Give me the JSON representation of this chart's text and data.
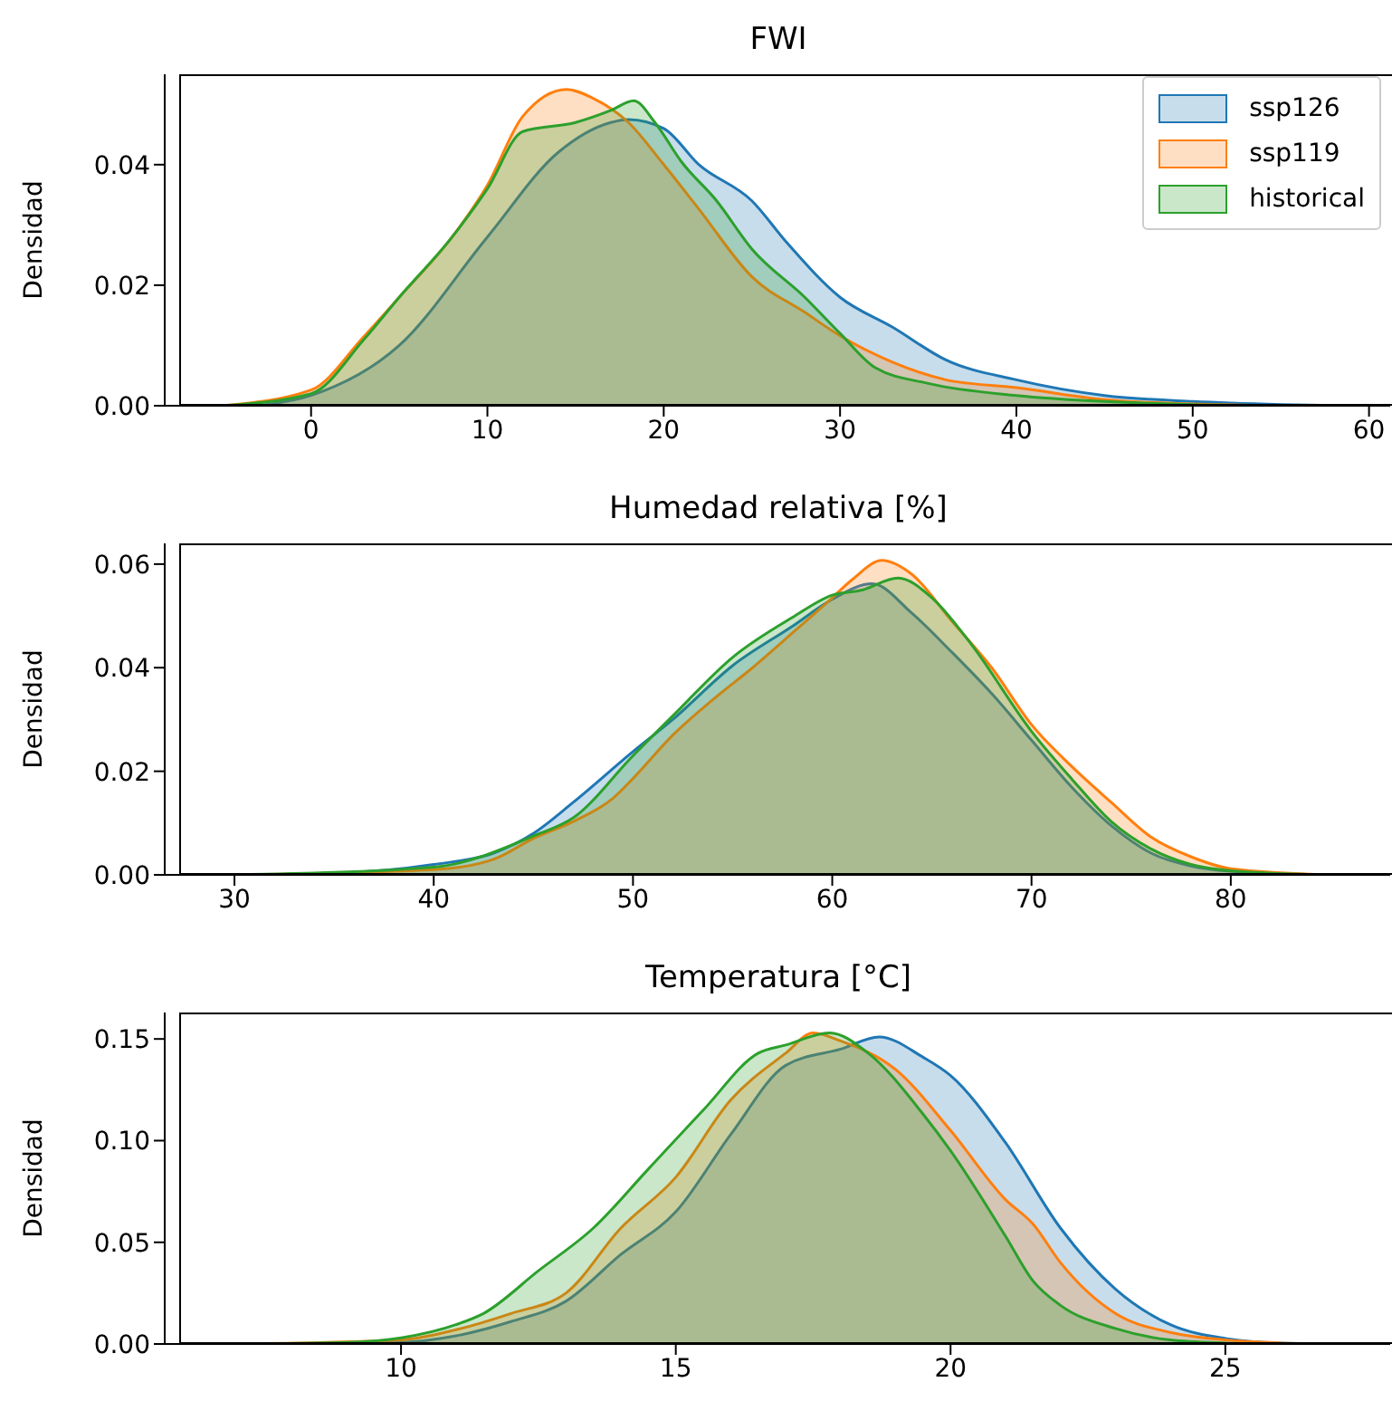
{
  "chart_data": [
    {
      "type": "area",
      "title": "FWI",
      "ylabel": "Densidad",
      "xlim": [
        -8.3,
        61.2
      ],
      "ylim": [
        0,
        0.055
      ],
      "xticks": [
        0,
        10,
        20,
        30,
        40,
        50,
        60
      ],
      "yticks": [
        {
          "value": 0,
          "label": "0.00"
        },
        {
          "value": 0.02,
          "label": "0.02"
        },
        {
          "value": 0.04,
          "label": "0.04"
        }
      ],
      "legend": "top right",
      "series": [
        {
          "name": "ssp126",
          "color": "#1f77b4",
          "x": [
            -3,
            0,
            5,
            10,
            14,
            17,
            18,
            20,
            22,
            25,
            27,
            30,
            33,
            36,
            40,
            45,
            50,
            55,
            59
          ],
          "values": [
            0,
            0.0017,
            0.01,
            0.028,
            0.042,
            0.047,
            0.0475,
            0.046,
            0.04,
            0.034,
            0.027,
            0.018,
            0.013,
            0.0076,
            0.0043,
            0.0017,
            0.0007,
            0.0002,
            0
          ]
        },
        {
          "name": "ssp119",
          "color": "#ff7f0e",
          "x": [
            -5,
            0,
            3,
            5,
            8,
            10,
            12,
            14.5,
            16,
            18,
            20,
            22,
            25,
            28,
            30,
            33,
            36,
            40,
            45,
            50,
            55
          ],
          "values": [
            0,
            0.0026,
            0.0115,
            0.018,
            0.028,
            0.0366,
            0.048,
            0.0525,
            0.051,
            0.047,
            0.04,
            0.0326,
            0.0214,
            0.0155,
            0.0116,
            0.0072,
            0.0043,
            0.003,
            0.001,
            0.0003,
            0
          ]
        },
        {
          "name": "historical",
          "color": "#2ca02c",
          "x": [
            -5,
            0,
            3,
            5,
            8,
            10,
            12,
            15,
            17,
            18.3,
            19.5,
            21,
            23,
            25,
            28,
            30,
            32,
            35,
            40,
            45,
            50,
            55
          ],
          "values": [
            0,
            0.002,
            0.011,
            0.018,
            0.028,
            0.036,
            0.0455,
            0.047,
            0.049,
            0.0506,
            0.047,
            0.0405,
            0.034,
            0.026,
            0.018,
            0.012,
            0.0063,
            0.0037,
            0.0017,
            0.0007,
            0.0002,
            0
          ]
        }
      ]
    },
    {
      "type": "area",
      "title": "Humedad relativa [%]",
      "ylabel": "Densidad",
      "xlim": [
        26.5,
        88
      ],
      "ylim": [
        0,
        0.064
      ],
      "xticks": [
        30,
        40,
        50,
        60,
        70,
        80
      ],
      "yticks": [
        {
          "value": 0,
          "label": "0.00"
        },
        {
          "value": 0.02,
          "label": "0.02"
        },
        {
          "value": 0.04,
          "label": "0.04"
        },
        {
          "value": 0.06,
          "label": "0.06"
        }
      ],
      "series": [
        {
          "color": "#1f77b4",
          "x": [
            30,
            35,
            40,
            43,
            45,
            47,
            50,
            52,
            55,
            58,
            60,
            62,
            64,
            66,
            68,
            70,
            72,
            74,
            76,
            78,
            80,
            85
          ],
          "values": [
            0,
            0.0003,
            0.002,
            0.0042,
            0.008,
            0.014,
            0.0238,
            0.03,
            0.0404,
            0.048,
            0.0532,
            0.0562,
            0.0505,
            0.043,
            0.035,
            0.026,
            0.017,
            0.0095,
            0.0042,
            0.0017,
            0.0007,
            0
          ]
        },
        {
          "color": "#ff7f0e",
          "x": [
            30,
            40,
            43,
            45,
            47,
            49,
            50,
            52,
            54,
            56,
            58,
            60,
            61,
            62.5,
            64,
            66,
            68,
            70,
            72,
            74,
            76,
            78,
            80,
            85
          ],
          "values": [
            0,
            0.001,
            0.003,
            0.007,
            0.0103,
            0.0148,
            0.0186,
            0.027,
            0.0338,
            0.04,
            0.0467,
            0.0535,
            0.057,
            0.0607,
            0.058,
            0.049,
            0.04,
            0.029,
            0.021,
            0.014,
            0.0073,
            0.0035,
            0.0012,
            0
          ]
        },
        {
          "color": "#2ca02c",
          "x": [
            30,
            40,
            45,
            47,
            50,
            52,
            55,
            58,
            60,
            61.5,
            63.3,
            65,
            67,
            70,
            72,
            74,
            76,
            78,
            80,
            85
          ],
          "values": [
            0,
            0.0015,
            0.0075,
            0.011,
            0.023,
            0.0307,
            0.042,
            0.0497,
            0.054,
            0.055,
            0.0573,
            0.0535,
            0.0444,
            0.0277,
            0.0186,
            0.0103,
            0.005,
            0.002,
            0.0008,
            0
          ]
        }
      ]
    },
    {
      "type": "area",
      "title": "Temperatura [°C]",
      "ylabel": "Densidad",
      "xlim": [
        5.7,
        28
      ],
      "ylim": [
        0,
        0.163
      ],
      "xticks": [
        10,
        15,
        20,
        25
      ],
      "yticks": [
        {
          "value": 0,
          "label": "0.00"
        },
        {
          "value": 0.05,
          "label": "0.05"
        },
        {
          "value": 0.1,
          "label": "0.10"
        },
        {
          "value": 0.15,
          "label": "0.15"
        }
      ],
      "series": [
        {
          "color": "#1f77b4",
          "x": [
            7,
            10,
            11,
            12,
            13,
            14,
            15,
            16,
            17,
            18,
            18.7,
            19.5,
            20,
            21,
            22,
            23,
            24,
            25,
            26,
            27.5
          ],
          "values": [
            0,
            0.0008,
            0.004,
            0.011,
            0.021,
            0.044,
            0.065,
            0.103,
            0.137,
            0.145,
            0.151,
            0.141,
            0.132,
            0.099,
            0.057,
            0.027,
            0.0095,
            0.0027,
            0.0005,
            0
          ]
        },
        {
          "color": "#ff7f0e",
          "x": [
            7,
            10,
            11,
            12,
            13,
            14,
            15,
            16,
            17,
            17.5,
            18,
            19,
            20,
            21,
            21.5,
            22,
            23,
            24,
            25,
            26,
            27
          ],
          "values": [
            0,
            0.002,
            0.007,
            0.015,
            0.025,
            0.057,
            0.082,
            0.12,
            0.143,
            0.153,
            0.149,
            0.135,
            0.105,
            0.071,
            0.059,
            0.04,
            0.015,
            0.0057,
            0.002,
            0.0005,
            0
          ]
        },
        {
          "color": "#2ca02c",
          "x": [
            7,
            9,
            10,
            11,
            11.5,
            12.5,
            13.5,
            14.5,
            15.5,
            16.5,
            17,
            17.8,
            18.5,
            19.5,
            20,
            21,
            21.5,
            22,
            23,
            24,
            25,
            26
          ],
          "values": [
            0,
            0.0008,
            0.003,
            0.0095,
            0.015,
            0.036,
            0.057,
            0.086,
            0.115,
            0.143,
            0.147,
            0.153,
            0.143,
            0.113,
            0.095,
            0.053,
            0.031,
            0.019,
            0.0076,
            0.002,
            0.0005,
            0
          ]
        }
      ]
    }
  ]
}
